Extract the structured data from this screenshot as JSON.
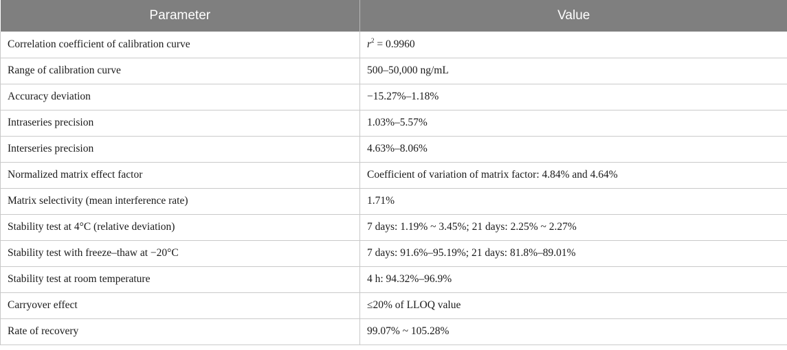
{
  "table": {
    "headers": {
      "parameter": "Parameter",
      "value": "Value"
    },
    "first_row": {
      "parameter": "Correlation coefficient of calibration curve",
      "value_symbol": "r",
      "value_exponent": "2",
      "value_text": " = 0.9960"
    },
    "rows": [
      {
        "parameter": "Range of calibration curve",
        "value": "500–50,000 ng/mL"
      },
      {
        "parameter": "Accuracy deviation",
        "value": "−15.27%–1.18%"
      },
      {
        "parameter": "Intraseries precision",
        "value": "1.03%–5.57%"
      },
      {
        "parameter": "Interseries precision",
        "value": "4.63%–8.06%"
      },
      {
        "parameter": "Normalized matrix effect factor",
        "value": "Coefficient of variation of matrix factor: 4.84% and 4.64%"
      },
      {
        "parameter": "Matrix selectivity (mean interference rate)",
        "value": "1.71%"
      },
      {
        "parameter": "Stability test at 4°C (relative deviation)",
        "value": "7 days: 1.19% ~ 3.45%; 21 days: 2.25% ~ 2.27%"
      },
      {
        "parameter": "Stability test with freeze–thaw at −20°C",
        "value": "7 days: 91.6%–95.19%; 21 days: 81.8%–89.01%"
      },
      {
        "parameter": "Stability test at room temperature",
        "value": "4 h: 94.32%–96.9%"
      },
      {
        "parameter": "Carryover effect",
        "value": "≤20% of LLOQ value"
      },
      {
        "parameter": "Rate of recovery",
        "value": "99.07% ~ 105.28%"
      }
    ]
  }
}
